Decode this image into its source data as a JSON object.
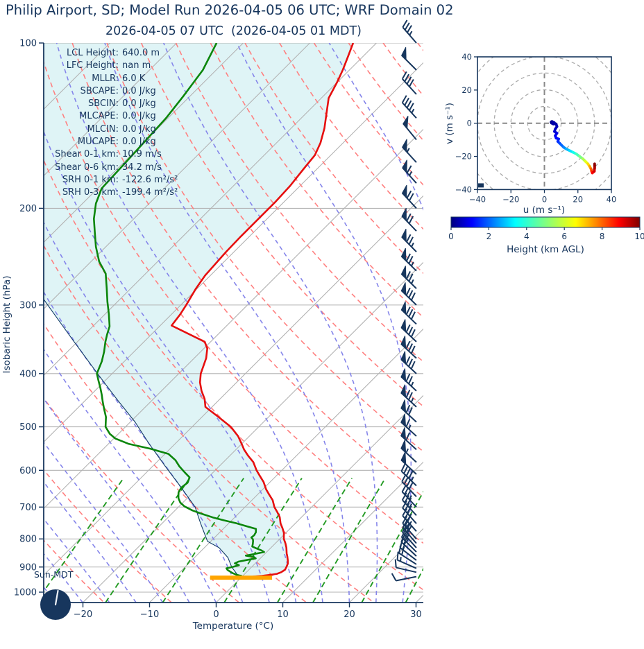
{
  "header": {
    "title": "Philip Airport, SD; Model Run 2026-04-05 06 UTC; WRF Domain 02",
    "subtitle": "2026-04-05 07 UTC  (2026-04-05 01 MDT)"
  },
  "stats": [
    {
      "label": "LCL Height:",
      "value": "640.0 m"
    },
    {
      "label": "LFC Height:",
      "value": "nan m"
    },
    {
      "label": "MLLR:",
      "value": "6.0 K"
    },
    {
      "label": "SBCAPE:",
      "value": "0.0 J/kg"
    },
    {
      "label": "SBCIN:",
      "value": "0.0 J/kg"
    },
    {
      "label": "MLCAPE:",
      "value": "0.0 J/kg"
    },
    {
      "label": "MLCIN:",
      "value": "0.0 J/kg"
    },
    {
      "label": "MUCAPE:",
      "value": "0.0 J/kg"
    },
    {
      "label": "Shear 0-1 km:",
      "value": "10.9 m/s"
    },
    {
      "label": "Shear 0-6 km:",
      "value": "34.2 m/s"
    },
    {
      "label": "SRH 0-1 km:",
      "value": "-122.6 m²/s²"
    },
    {
      "label": "SRH 0-3 km:",
      "value": "-199.4 m²/s²"
    }
  ],
  "skewt_axes": {
    "xlabel": "Temperature (°C)",
    "ylabel": "Isobaric Height (hPa)",
    "x_ticks": [
      -20,
      -10,
      0,
      10,
      20,
      30
    ],
    "y_ticks": [
      100,
      200,
      300,
      400,
      500,
      600,
      700,
      800,
      900,
      1000
    ]
  },
  "hodograph_axes": {
    "xlabel": "u (m s⁻¹)",
    "ylabel": "v (m s⁻¹)",
    "ticks": [
      -40,
      -20,
      0,
      20,
      40
    ],
    "rings": [
      10,
      20,
      30,
      40,
      50
    ]
  },
  "colorbar": {
    "label": "Height (km AGL)",
    "ticks": [
      0,
      2,
      4,
      6,
      8,
      10
    ],
    "range_km": [
      0,
      10
    ]
  },
  "sun_indicator": {
    "label": "Sun-MDT"
  },
  "colors": {
    "ink": "#17365d",
    "temperature": "#e60f0f",
    "dewpoint": "#0c860c",
    "parcel": "#123c66",
    "dry_adiabat": "#ff8080",
    "moist_adiabat": "#8585ea",
    "mixing_ratio": "#229a22",
    "isoline": "#b3b3b3",
    "shade_fill": "#dff4f6",
    "surface_bar": "#ffa500",
    "barb": "#17365d",
    "ring": "#aaaaaa",
    "crosshair": "#888888"
  },
  "chart_data": {
    "type": "skewt-log-p",
    "pressure_range_hPa": [
      100,
      1045
    ],
    "temperature_profile": [
      [
        100,
        -63.5
      ],
      [
        106,
        -62.2
      ],
      [
        112,
        -61.0
      ],
      [
        118,
        -60.0
      ],
      [
        126,
        -58.9
      ],
      [
        134,
        -57.0
      ],
      [
        143,
        -55.0
      ],
      [
        152,
        -53.4
      ],
      [
        160,
        -52.4
      ],
      [
        170,
        -52.0
      ],
      [
        182,
        -51.5
      ],
      [
        195,
        -51.3
      ],
      [
        210,
        -51.3
      ],
      [
        225,
        -51.3
      ],
      [
        240,
        -51.2
      ],
      [
        252,
        -51.0
      ],
      [
        265,
        -50.8
      ],
      [
        280,
        -50.2
      ],
      [
        300,
        -49.2
      ],
      [
        312,
        -48.7
      ],
      [
        327,
        -48.3
      ],
      [
        350,
        -40.9
      ],
      [
        360,
        -39.5
      ],
      [
        375,
        -38.2
      ],
      [
        400,
        -36.7
      ],
      [
        415,
        -35.5
      ],
      [
        430,
        -34.0
      ],
      [
        445,
        -32.3
      ],
      [
        460,
        -31.0
      ],
      [
        480,
        -27.5
      ],
      [
        500,
        -24.2
      ],
      [
        520,
        -21.7
      ],
      [
        535,
        -20.2
      ],
      [
        550,
        -18.8
      ],
      [
        565,
        -17.2
      ],
      [
        580,
        -15.5
      ],
      [
        600,
        -13.8
      ],
      [
        615,
        -12.4
      ],
      [
        630,
        -11.0
      ],
      [
        650,
        -9.5
      ],
      [
        665,
        -8.2
      ],
      [
        680,
        -6.9
      ],
      [
        700,
        -5.6
      ],
      [
        715,
        -4.4
      ],
      [
        730,
        -3.3
      ],
      [
        750,
        -2.2
      ],
      [
        765,
        -1.2
      ],
      [
        780,
        -0.3
      ],
      [
        800,
        0.6
      ],
      [
        815,
        1.5
      ],
      [
        830,
        2.3
      ],
      [
        850,
        3.2
      ],
      [
        862,
        3.8
      ],
      [
        875,
        4.4
      ],
      [
        887,
        4.9
      ],
      [
        900,
        5.2
      ],
      [
        910,
        5.4
      ],
      [
        920,
        5.2
      ],
      [
        926,
        4.8
      ],
      [
        930,
        4.0
      ],
      [
        934,
        2.9
      ],
      [
        937,
        1.6
      ]
    ],
    "dewpoint_profile": [
      [
        100,
        -84.0
      ],
      [
        112,
        -82.0
      ],
      [
        125,
        -81.0
      ],
      [
        137,
        -80.3
      ],
      [
        150,
        -80.0
      ],
      [
        165,
        -79.7
      ],
      [
        184,
        -79.4
      ],
      [
        196,
        -78.0
      ],
      [
        209,
        -76.0
      ],
      [
        222,
        -73.7
      ],
      [
        235,
        -71.5
      ],
      [
        250,
        -68.8
      ],
      [
        263,
        -66.0
      ],
      [
        280,
        -63.6
      ],
      [
        296,
        -61.5
      ],
      [
        312,
        -59.4
      ],
      [
        328,
        -57.5
      ],
      [
        340,
        -56.6
      ],
      [
        350,
        -55.8
      ],
      [
        365,
        -54.5
      ],
      [
        380,
        -53.4
      ],
      [
        400,
        -52.3
      ],
      [
        412,
        -51.0
      ],
      [
        425,
        -49.6
      ],
      [
        437,
        -48.4
      ],
      [
        450,
        -47.2
      ],
      [
        465,
        -45.8
      ],
      [
        480,
        -44.4
      ],
      [
        500,
        -43.0
      ],
      [
        515,
        -41.3
      ],
      [
        525,
        -39.8
      ],
      [
        537,
        -37.0
      ],
      [
        548,
        -33.0
      ],
      [
        560,
        -29.5
      ],
      [
        575,
        -27.5
      ],
      [
        590,
        -26.0
      ],
      [
        605,
        -24.3
      ],
      [
        618,
        -22.8
      ],
      [
        632,
        -22.3
      ],
      [
        645,
        -22.5
      ],
      [
        658,
        -22.2
      ],
      [
        664,
        -21.9
      ],
      [
        675,
        -21.3
      ],
      [
        687,
        -20.4
      ],
      [
        698,
        -19.2
      ],
      [
        710,
        -17.4
      ],
      [
        720,
        -15.5
      ],
      [
        731,
        -13.3
      ],
      [
        740,
        -11.2
      ],
      [
        749,
        -8.9
      ],
      [
        758,
        -7.0
      ],
      [
        767,
        -5.1
      ],
      [
        778,
        -4.6
      ],
      [
        788,
        -4.4
      ],
      [
        795,
        -4.5
      ],
      [
        801,
        -4.0
      ],
      [
        807,
        -3.7
      ],
      [
        817,
        -3.3
      ],
      [
        826,
        -3.0
      ],
      [
        833,
        -2.0
      ],
      [
        839,
        -1.1
      ],
      [
        845,
        -0.4
      ],
      [
        852,
        -1.5
      ],
      [
        858,
        -2.6
      ],
      [
        863,
        -1.2
      ],
      [
        868,
        -0.7
      ],
      [
        874,
        -1.8
      ],
      [
        880,
        -2.8
      ],
      [
        886,
        -3.1
      ],
      [
        893,
        -2.2
      ],
      [
        899,
        -2.8
      ],
      [
        905,
        -3.6
      ],
      [
        911,
        -3.2
      ],
      [
        917,
        -2.6
      ],
      [
        923,
        -2.0
      ],
      [
        929,
        -1.2
      ],
      [
        933,
        -0.5
      ],
      [
        937,
        0.1
      ]
    ],
    "parcel_profile": [
      [
        937,
        -0.5
      ],
      [
        900,
        -3.0
      ],
      [
        865,
        -5.0
      ],
      [
        830,
        -7.8
      ],
      [
        808,
        -10.5
      ],
      [
        750,
        -14.2
      ],
      [
        700,
        -17.5
      ],
      [
        640,
        -23.0
      ],
      [
        590,
        -28.1
      ],
      [
        537,
        -33.9
      ],
      [
        490,
        -39.3
      ],
      [
        445,
        -45.5
      ],
      [
        400,
        -52.2
      ],
      [
        350,
        -60.5
      ],
      [
        298,
        -70.4
      ],
      [
        250,
        -81.0
      ]
    ],
    "surface_bar": {
      "pressure_hPa": 937,
      "t_from_C": -4.8,
      "t_to_C": 4.5
    },
    "wind_barbs": [
      [
        100,
        13,
        -15
      ],
      [
        112,
        18,
        -18
      ],
      [
        124,
        15,
        -16.5
      ],
      [
        137,
        15.5,
        -17
      ],
      [
        150,
        16,
        -19.5
      ],
      [
        165,
        20,
        -22
      ],
      [
        180,
        22,
        -24.5
      ],
      [
        200,
        24,
        -26
      ],
      [
        220,
        26,
        -27
      ],
      [
        240,
        27,
        -27.5
      ],
      [
        260,
        27.5,
        -27
      ],
      [
        280,
        28,
        -27.5
      ],
      [
        300,
        29,
        -28
      ],
      [
        325,
        29.5,
        -28.5
      ],
      [
        350,
        30,
        -28.5
      ],
      [
        375,
        30,
        -28
      ],
      [
        400,
        29.5,
        -27.5
      ],
      [
        430,
        28.5,
        -26.5
      ],
      [
        460,
        27.5,
        -25.5
      ],
      [
        490,
        26,
        -24
      ],
      [
        520,
        24.5,
        -22.5
      ],
      [
        550,
        23,
        -21
      ],
      [
        580,
        21,
        -19.5
      ],
      [
        610,
        19,
        -18
      ],
      [
        640,
        17,
        -16.5
      ],
      [
        670,
        15,
        -15.5
      ],
      [
        700,
        13.5,
        -14.5
      ],
      [
        725,
        12.5,
        -13.8
      ],
      [
        750,
        11.5,
        -13
      ],
      [
        775,
        11,
        -12.5
      ],
      [
        800,
        10.5,
        -12
      ],
      [
        815,
        10,
        -11.5
      ],
      [
        830,
        9.5,
        -10.5
      ],
      [
        845,
        9.5,
        -9.5
      ],
      [
        860,
        9,
        -8.5
      ],
      [
        875,
        9,
        -7
      ],
      [
        890,
        8.5,
        -5.5
      ],
      [
        905,
        8,
        -3.5
      ],
      [
        920,
        6.5,
        -1.5
      ],
      [
        937,
        5,
        1
      ]
    ],
    "hodograph_trace": [
      [
        4.5,
        0.5,
        0
      ],
      [
        5.5,
        0,
        0.15
      ],
      [
        7,
        -0.5,
        0.3
      ],
      [
        7.5,
        -2,
        0.45
      ],
      [
        6.5,
        -3.5,
        0.6
      ],
      [
        6,
        -5,
        0.75
      ],
      [
        7.5,
        -6,
        0.9
      ],
      [
        6.5,
        -7.5,
        1.05
      ],
      [
        7,
        -9,
        1.2
      ],
      [
        8.5,
        -9.5,
        1.4
      ],
      [
        8,
        -11,
        1.6
      ],
      [
        9,
        -12,
        1.8
      ],
      [
        10,
        -13,
        2.1
      ],
      [
        11.5,
        -14.5,
        2.4
      ],
      [
        13,
        -15.5,
        2.8
      ],
      [
        15,
        -16.5,
        3.2
      ],
      [
        17,
        -17.5,
        3.7
      ],
      [
        19,
        -18.5,
        4.2
      ],
      [
        21,
        -20,
        4.7
      ],
      [
        23,
        -21.5,
        5.2
      ],
      [
        24.5,
        -23,
        5.7
      ],
      [
        26,
        -24.5,
        6.3
      ],
      [
        27,
        -26,
        6.9
      ],
      [
        27.8,
        -27.5,
        7.5
      ],
      [
        28.2,
        -29,
        8.1
      ],
      [
        28.6,
        -30,
        8.6
      ],
      [
        29.8,
        -29,
        9.0
      ],
      [
        30,
        -27,
        9.4
      ],
      [
        30,
        -25.5,
        9.7
      ],
      [
        30,
        -24.5,
        10
      ]
    ],
    "background": {
      "isotherms_C": {
        "start": -110,
        "end": 40,
        "step": 10
      },
      "dry_adiabats_C": {
        "start": -30,
        "end": 180,
        "step": 10
      },
      "moist_adiabats_C": {
        "start": -40,
        "end": 44,
        "step": 4
      },
      "mixing_ratios_g_kg": [
        0.4,
        1,
        2,
        4,
        7,
        10,
        16,
        24,
        32
      ]
    }
  }
}
